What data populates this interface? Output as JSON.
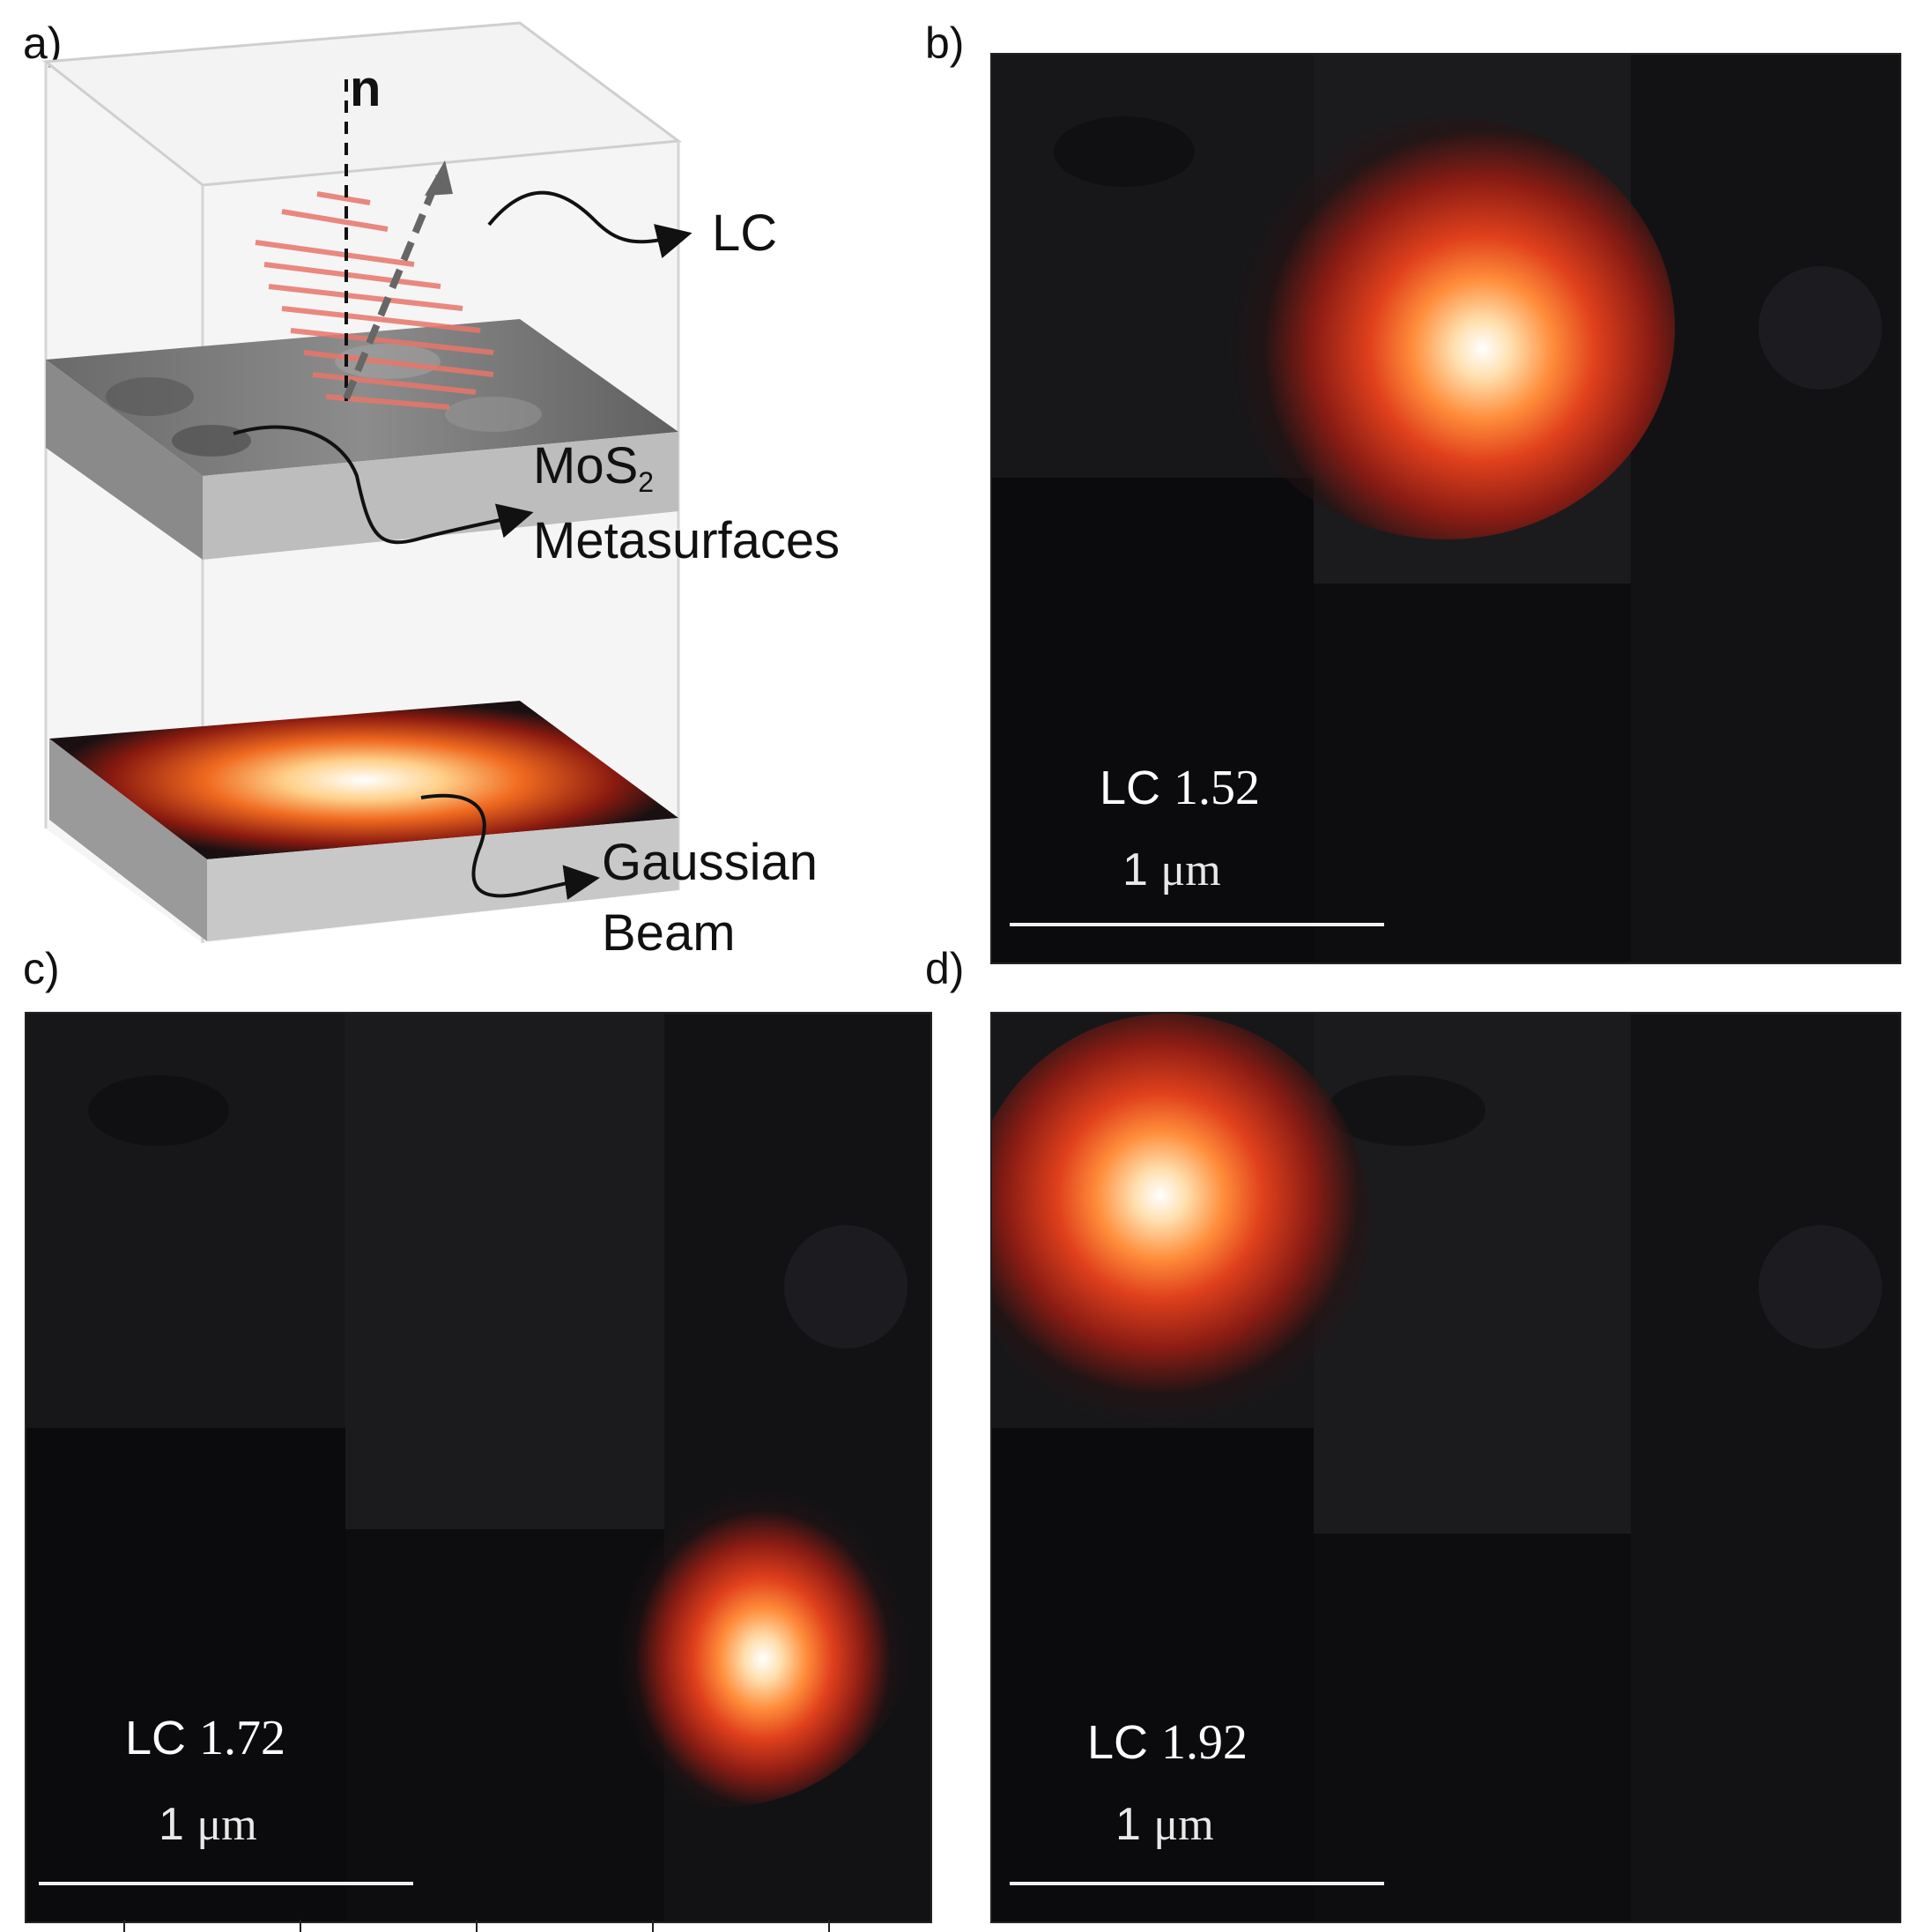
{
  "panels": {
    "a": {
      "label": "a)",
      "n_label": "n",
      "lc_label": "LC",
      "metasurface_label_main": "MoS",
      "metasurface_label_sub": "2",
      "metasurface_label_line2": "Metasurfaces",
      "beam_label_line1": "Gaussian",
      "beam_label_line2": "Beam"
    },
    "b": {
      "label": "b)",
      "lc_prefix": "LC",
      "lc_value": "1.52",
      "scale_num": "1",
      "scale_unit": "μm"
    },
    "c": {
      "label": "c)",
      "lc_prefix": "LC",
      "lc_value": "1.72",
      "scale_num": "1",
      "scale_unit": "μm"
    },
    "d": {
      "label": "d)",
      "lc_prefix": "LC",
      "lc_value": "1.92",
      "scale_num": "1",
      "scale_unit": "μm"
    }
  },
  "colors": {
    "background": "#111114",
    "spot_core": "#ffffff",
    "spot_mid": "#ff6a2a",
    "spot_outer": "#b41a10",
    "lc_wave": "#e8766a"
  }
}
